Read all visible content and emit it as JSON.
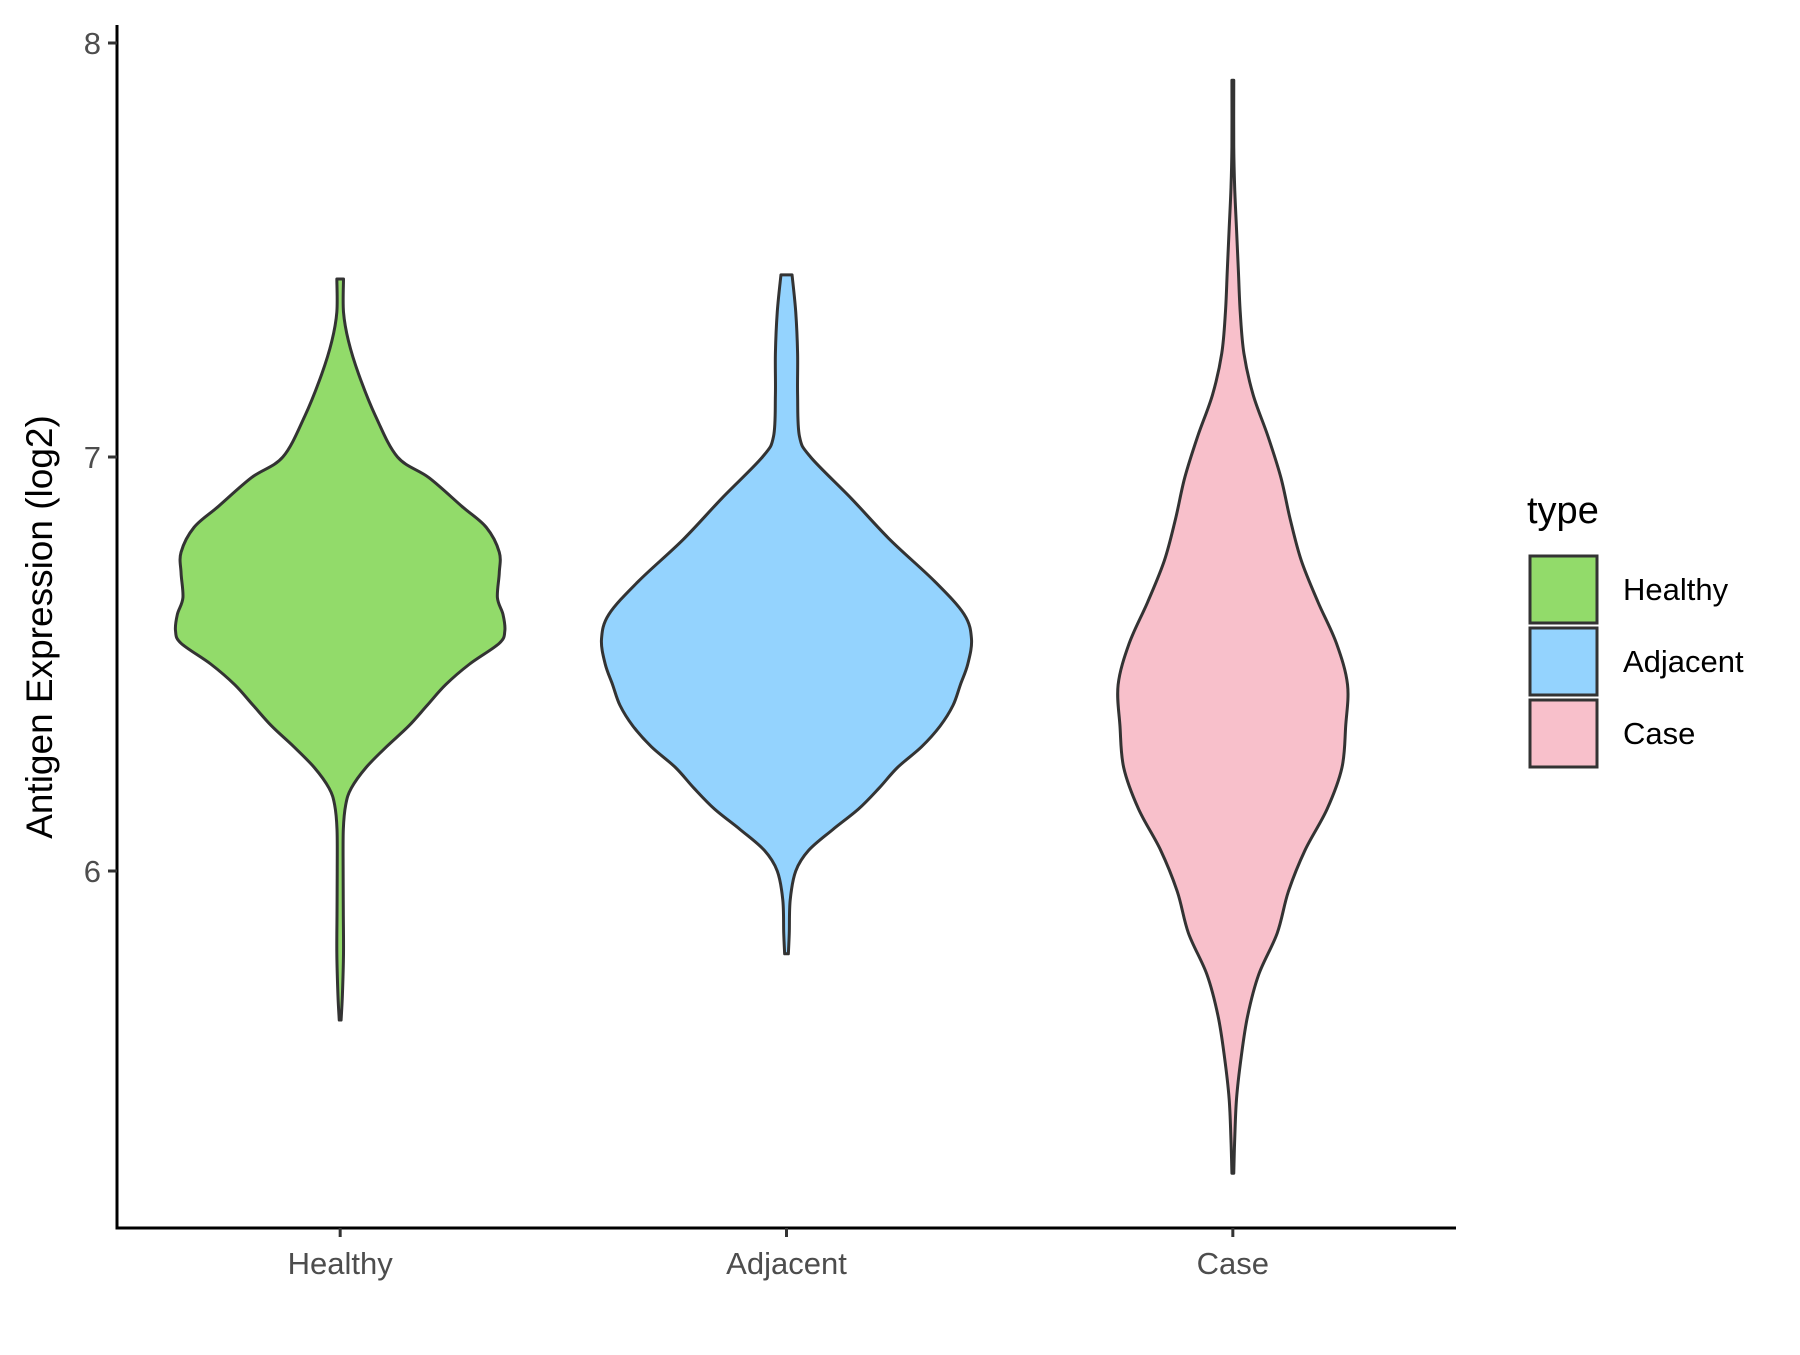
{
  "chart_data": {
    "type": "violin",
    "title": "",
    "xlabel": "",
    "ylabel": "Antigen Expression (log2)",
    "categories": [
      "Healthy",
      "Adjacent",
      "Case"
    ],
    "yticks": [
      "6",
      "7",
      "8"
    ],
    "ylim": [
      5.15,
      8.05
    ],
    "grid": false,
    "legend": {
      "title": "type",
      "position": "right",
      "entries": [
        "Healthy",
        "Adjacent",
        "Case"
      ]
    },
    "colors": {
      "Healthy": "#92db6a",
      "Adjacent": "#94d3fe",
      "Case": "#f8c0cb",
      "outline": "#333333",
      "axis": "#000000"
    },
    "series": [
      {
        "category": "Healthy",
        "color": "#92db6a",
        "ymin": 5.64,
        "ymax": 7.43,
        "density": [
          [
            5.64,
            0.005
          ],
          [
            5.7,
            0.012
          ],
          [
            5.8,
            0.018
          ],
          [
            5.9,
            0.017
          ],
          [
            6.0,
            0.016
          ],
          [
            6.1,
            0.017
          ],
          [
            6.16,
            0.03
          ],
          [
            6.2,
            0.06
          ],
          [
            6.25,
            0.14
          ],
          [
            6.3,
            0.25
          ],
          [
            6.35,
            0.37
          ],
          [
            6.4,
            0.47
          ],
          [
            6.45,
            0.57
          ],
          [
            6.5,
            0.7
          ],
          [
            6.55,
            0.86
          ],
          [
            6.58,
            0.89
          ],
          [
            6.62,
            0.88
          ],
          [
            6.66,
            0.85
          ],
          [
            6.72,
            0.86
          ],
          [
            6.77,
            0.86
          ],
          [
            6.83,
            0.79
          ],
          [
            6.88,
            0.66
          ],
          [
            6.95,
            0.48
          ],
          [
            7.0,
            0.31
          ],
          [
            7.1,
            0.19
          ],
          [
            7.2,
            0.1
          ],
          [
            7.28,
            0.045
          ],
          [
            7.35,
            0.018
          ],
          [
            7.43,
            0.018
          ]
        ]
      },
      {
        "category": "Adjacent",
        "color": "#94d3fe",
        "ymin": 5.8,
        "ymax": 7.44,
        "density": [
          [
            5.8,
            0.01
          ],
          [
            5.85,
            0.015
          ],
          [
            5.93,
            0.02
          ],
          [
            6.0,
            0.05
          ],
          [
            6.05,
            0.12
          ],
          [
            6.1,
            0.25
          ],
          [
            6.15,
            0.39
          ],
          [
            6.2,
            0.5
          ],
          [
            6.25,
            0.6
          ],
          [
            6.3,
            0.73
          ],
          [
            6.35,
            0.83
          ],
          [
            6.4,
            0.9
          ],
          [
            6.45,
            0.94
          ],
          [
            6.5,
            0.98
          ],
          [
            6.56,
            1.0
          ],
          [
            6.62,
            0.96
          ],
          [
            6.7,
            0.8
          ],
          [
            6.8,
            0.56
          ],
          [
            6.9,
            0.35
          ],
          [
            7.0,
            0.13
          ],
          [
            7.05,
            0.07
          ],
          [
            7.15,
            0.06
          ],
          [
            7.25,
            0.06
          ],
          [
            7.35,
            0.05
          ],
          [
            7.44,
            0.03
          ]
        ]
      },
      {
        "category": "Case",
        "color": "#f8c0cb",
        "ymin": 5.27,
        "ymax": 7.91,
        "density": [
          [
            5.27,
            0.005
          ],
          [
            5.35,
            0.01
          ],
          [
            5.45,
            0.02
          ],
          [
            5.55,
            0.045
          ],
          [
            5.65,
            0.08
          ],
          [
            5.75,
            0.14
          ],
          [
            5.85,
            0.24
          ],
          [
            5.95,
            0.3
          ],
          [
            6.05,
            0.39
          ],
          [
            6.15,
            0.51
          ],
          [
            6.25,
            0.59
          ],
          [
            6.35,
            0.61
          ],
          [
            6.45,
            0.62
          ],
          [
            6.55,
            0.56
          ],
          [
            6.65,
            0.46
          ],
          [
            6.75,
            0.37
          ],
          [
            6.85,
            0.31
          ],
          [
            6.95,
            0.26
          ],
          [
            7.05,
            0.19
          ],
          [
            7.15,
            0.11
          ],
          [
            7.25,
            0.06
          ],
          [
            7.35,
            0.04
          ],
          [
            7.45,
            0.03
          ],
          [
            7.55,
            0.02
          ],
          [
            7.65,
            0.01
          ],
          [
            7.75,
            0.005
          ],
          [
            7.91,
            0.005
          ]
        ]
      }
    ]
  }
}
